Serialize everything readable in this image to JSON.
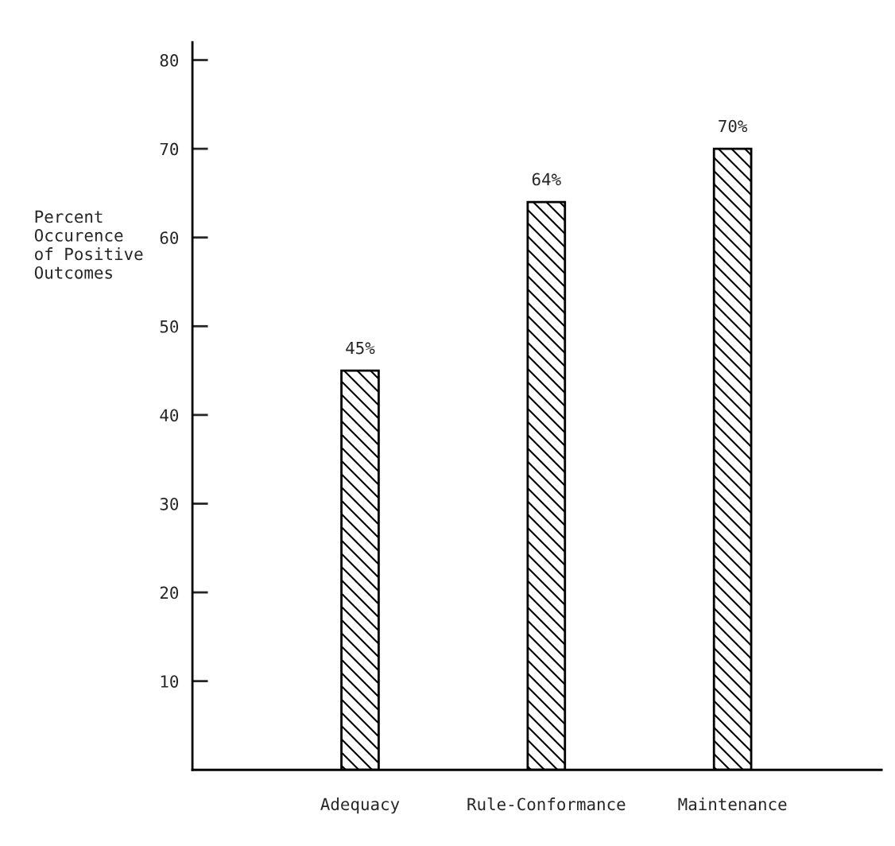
{
  "chart_data": {
    "type": "bar",
    "ylabel": "Percent\nOccurence\nof Positive\nOutcomes",
    "categories": [
      "Adequacy",
      "Rule-Conformance",
      "Maintenance"
    ],
    "values": [
      45,
      64,
      70
    ],
    "value_labels": [
      "45%",
      "64%",
      "70%"
    ],
    "color": "#000000",
    "ylim": [
      0,
      82
    ],
    "yticks": [
      10,
      20,
      30,
      40,
      50,
      60,
      70,
      80
    ],
    "grid": false
  }
}
